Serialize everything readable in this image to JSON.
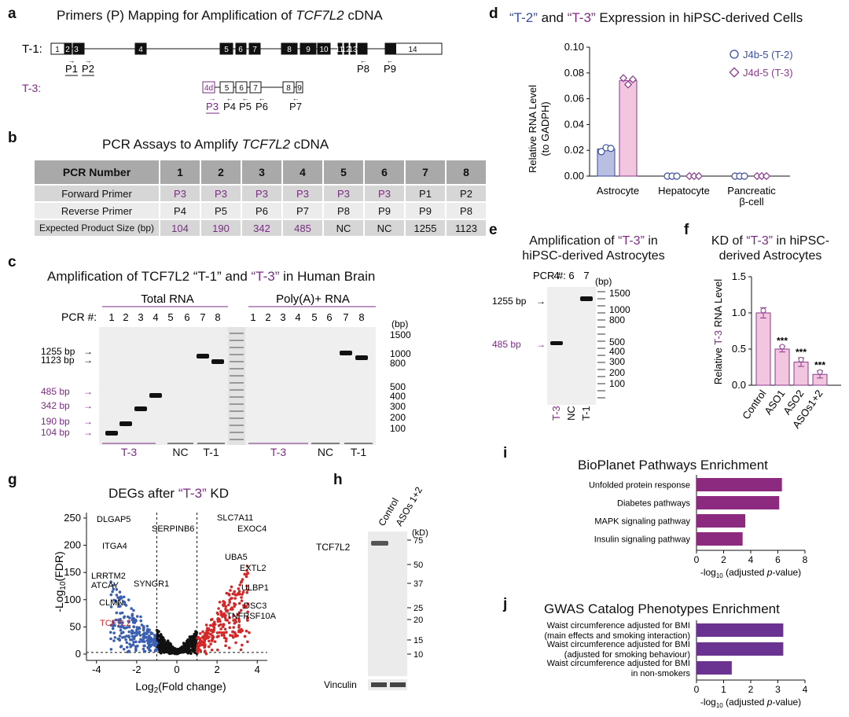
{
  "panels": {
    "a": "a",
    "b": "b",
    "c": "c",
    "d": "d",
    "e": "e",
    "f": "f",
    "g": "g",
    "h": "h",
    "i": "i",
    "j": "j"
  },
  "a": {
    "title_pre": "Primers (P) Mapping for Amplification of ",
    "title_gene": "TCF7L2",
    "title_post": " cDNA",
    "t1_label": "T-1:",
    "t3_label": "T-3:",
    "t1_exons": [
      "1",
      "2",
      "3",
      "4",
      "5",
      "6",
      "7",
      "8",
      "9",
      "10",
      "11",
      "12",
      "13",
      "14"
    ],
    "t3_exons": [
      "4d",
      "5",
      "6",
      "7",
      "8",
      "9"
    ],
    "primers_t1": [
      "P1",
      "P2",
      "P8",
      "P9"
    ],
    "primers_t3": [
      "P3",
      "P4",
      "P5",
      "P6",
      "P7"
    ]
  },
  "b": {
    "title_pre": "PCR Assays to Amplify ",
    "title_gene": "TCF7L2",
    "title_post": " cDNA",
    "header": "PCR Number",
    "numbers": [
      "1",
      "2",
      "3",
      "4",
      "5",
      "6",
      "7",
      "8"
    ],
    "rows": [
      {
        "label": "Forward Primer",
        "cells": [
          "P3",
          "P3",
          "P3",
          "P3",
          "P3",
          "P3",
          "P1",
          "P2"
        ]
      },
      {
        "label": "Reverse Primer",
        "cells": [
          "P4",
          "P5",
          "P6",
          "P7",
          "P8",
          "P9",
          "P9",
          "P8"
        ]
      },
      {
        "label": "Expected Product Size (bp)",
        "cells": [
          "104",
          "190",
          "342",
          "485",
          "NC",
          "NC",
          "1255",
          "1123"
        ]
      }
    ]
  },
  "c": {
    "title_pre": "Amplification of TCF7L2 “T-1” and ",
    "title_t3": "“T-3”",
    "title_post": " in Human Brain",
    "total": "Total RNA",
    "polya": "Poly(A)+ RNA",
    "pcr": "PCR #:",
    "lanes": [
      "1",
      "2",
      "3",
      "4",
      "5",
      "6",
      "7",
      "8"
    ],
    "left_markers": [
      "1255 bp",
      "1123 bp"
    ],
    "purple_markers": [
      "485 bp",
      "342 bp",
      "190 bp",
      "104 bp"
    ],
    "ladder_unit": "(bp)",
    "ladder": [
      "1500",
      "1000",
      "800",
      "500",
      "400",
      "300",
      "200",
      "100"
    ],
    "groups": [
      "T-3",
      "NC",
      "T-1"
    ]
  },
  "d": {
    "title_a": "“T-2”",
    "title_mid": " and ",
    "title_b": "“T-3”",
    "title_post": " Expression in hiPSC-derived Cells",
    "ylabel1": "Relative RNA Level",
    "ylabel2": "(to GADPH)",
    "legend": [
      "J4b-5 (T-2)",
      "J4d-5 (T-3)"
    ],
    "cats": [
      "Astrocyte",
      "Hepatocyte",
      "Pancreatic",
      "β-cell"
    ]
  },
  "e": {
    "title1_pre": "Amplification of ",
    "title1_t3": "“T-3”",
    "title1_post": " in",
    "title2": "hiPSC-derived Astrocytes",
    "pcr": "PCR #:",
    "lanes": [
      "4",
      "6",
      "7"
    ],
    "unit": "(bp)",
    "ladder": [
      "1500",
      "1000",
      "800",
      "500",
      "400",
      "300",
      "200",
      "100"
    ],
    "marker1": "1255 bp",
    "marker2": "485 bp",
    "groups": [
      "T-3",
      "NC",
      "T-1"
    ]
  },
  "f": {
    "title1_pre": "KD of ",
    "title1_t3": "“T-3”",
    "title1_post": " in hiPSC-",
    "title2": "derived Astrocytes",
    "ylabel_pre": "Relative ",
    "ylabel_t3": "T-3",
    "ylabel_post": " RNA Level",
    "stars": "***"
  },
  "g": {
    "title_pre": "DEGs after ",
    "title_t3": "“T-3”",
    "title_post": " KD",
    "xlabel": "Log2(Fold change)",
    "ylabel": "-Log10(FDR)",
    "down_genes": [
      "DLGAP5",
      "SERPINB6",
      "ITGA4",
      "LRRTM2",
      "ATCAY",
      "SYNGR1",
      "CLMN"
    ],
    "tcf": "TCF7L2",
    "up_genes": [
      "SLC7A11",
      "EXOC4",
      "UBA5",
      "EXTL2",
      "ULBP1",
      "DSC3",
      "TNFRSF10A"
    ]
  },
  "h": {
    "cols": [
      "Control",
      "ASOs 1+2"
    ],
    "kd": "(kD)",
    "band": "TCF7L2",
    "loading": "Vinculin",
    "markers": [
      "75",
      "50",
      "37",
      "25",
      "20",
      "15",
      "10"
    ]
  },
  "chart_data": [
    {
      "type": "bar",
      "id": "d",
      "title": "“T-2” and “T-3” Expression in hiPSC-derived Cells",
      "categories": [
        "Astrocyte",
        "Hepatocyte",
        "Pancreatic β-cell"
      ],
      "series": [
        {
          "name": "J4b-5 (T-2)",
          "values": [
            0.021,
            0,
            0
          ],
          "color": "#b9bfe0",
          "stroke": "#3b4ea0"
        },
        {
          "name": "J4d-5 (T-3)",
          "values": [
            0.074,
            0,
            0
          ],
          "color": "#f2c6df",
          "stroke": "#8a3a8d"
        }
      ],
      "ylim": [
        0,
        0.1
      ],
      "yticks": [
        "0.00",
        "0.02",
        "0.04",
        "0.06",
        "0.08",
        "0.10"
      ],
      "ylabel": "Relative RNA Level (to GADPH)"
    },
    {
      "type": "bar",
      "id": "f",
      "title": "KD of “T-3” in hiPSC-derived Astrocytes",
      "categories": [
        "Control",
        "ASO1",
        "ASO2",
        "ASOs1+2"
      ],
      "values": [
        1.0,
        0.5,
        0.32,
        0.15
      ],
      "errors": [
        0.07,
        0.04,
        0.06,
        0.05
      ],
      "ylim": [
        0,
        1.5
      ],
      "yticks": [
        "0.0",
        "0.5",
        "1.0",
        "1.5"
      ],
      "ylabel": "Relative T-3 RNA Level"
    },
    {
      "type": "scatter",
      "id": "g",
      "title": "DEGs after “T-3” KD",
      "xlim": [
        -4.5,
        4.5
      ],
      "ylim": [
        0,
        260
      ],
      "xticks": [
        "-4",
        "-2",
        "0",
        "2",
        "4"
      ],
      "yticks": [
        "0",
        "50",
        "100",
        "150",
        "200",
        "250"
      ],
      "xlabel": "Log2(Fold change)",
      "ylabel": "-Log10(FDR)"
    },
    {
      "type": "bar",
      "id": "i",
      "orientation": "horizontal",
      "title": "BioPlanet Pathways Enrichment",
      "categories": [
        "Unfolded protein response",
        "Diabetes pathways",
        "MAPK signaling pathway",
        "Insulin signaling pathway"
      ],
      "values": [
        6.3,
        6.1,
        3.6,
        3.4
      ],
      "xlim": [
        0,
        8
      ],
      "xticks": [
        "0",
        "2",
        "4",
        "6",
        "8"
      ],
      "xlabel": "-log10 (adjusted p-value)",
      "color": "#8b2a7e"
    },
    {
      "type": "bar",
      "id": "j",
      "orientation": "horizontal",
      "title": "GWAS Catalog Phenotypes Enrichment",
      "categories": [
        [
          "Waist circumference adjusted for BMI",
          "(main effects and smoking interaction)"
        ],
        [
          "Waist circumference adjusted for BMI",
          "(adjusted for smoking behaviour)"
        ],
        [
          "Waist circumference adjusted for BMI",
          "in non-smokers"
        ]
      ],
      "values": [
        3.2,
        3.2,
        1.3
      ],
      "xlim": [
        0,
        4
      ],
      "xticks": [
        "0",
        "1",
        "2",
        "3",
        "4"
      ],
      "xlabel": "-log10 (adjusted p-value)",
      "color": "#6a3391"
    }
  ]
}
